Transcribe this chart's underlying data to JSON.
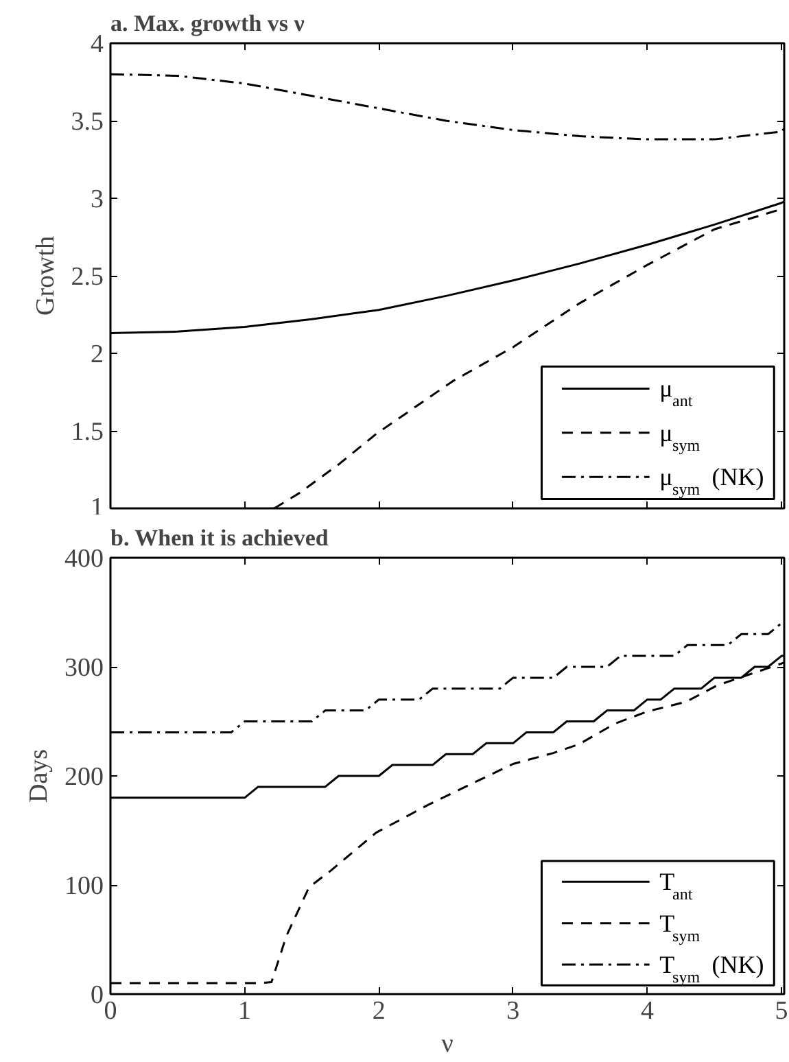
{
  "chart_data": [
    {
      "type": "line",
      "title": "a. Max. growth vs ν",
      "ylabel": "Growth",
      "xlim": [
        0,
        5.02
      ],
      "ylim": [
        1,
        4
      ],
      "xticks": [
        0,
        1,
        2,
        3,
        4,
        5
      ],
      "yticks": [
        1,
        1.5,
        2,
        2.5,
        3,
        3.5,
        4
      ],
      "tick_labels": "y",
      "grid": false,
      "legend": "bottom right",
      "marker": "none",
      "series": [
        {
          "name": "μ$_{ant}$",
          "color": "#000000",
          "line_style": "solid",
          "x": [
            0,
            0.5,
            1,
            1.5,
            2,
            2.5,
            3,
            3.5,
            4,
            4.5,
            5,
            5.02
          ],
          "values": [
            2.13,
            2.14,
            2.17,
            2.22,
            2.28,
            2.37,
            2.47,
            2.58,
            2.7,
            2.83,
            2.97,
            2.98
          ]
        },
        {
          "name": "μ$_{sym}$",
          "color": "#000000",
          "line_style": "dashed",
          "x": [
            1.22,
            1.41,
            1.71,
            1.98,
            2.55,
            3.0,
            3.49,
            4.0,
            4.5,
            5.0,
            5.02
          ],
          "values": [
            1.0,
            1.1,
            1.29,
            1.48,
            1.82,
            2.04,
            2.32,
            2.57,
            2.8,
            2.93,
            2.94
          ]
        },
        {
          "name": "μ$_{sym}$ (NK)",
          "color": "#000000",
          "line_style": "dashdot",
          "x": [
            0,
            0.5,
            1,
            1.5,
            2,
            2.5,
            3,
            3.5,
            4,
            4.5,
            5,
            5.02
          ],
          "values": [
            3.8,
            3.79,
            3.74,
            3.66,
            3.58,
            3.5,
            3.44,
            3.4,
            3.38,
            3.38,
            3.43,
            3.45
          ]
        }
      ]
    },
    {
      "type": "line",
      "title": "b. When it is achieved",
      "xlabel": "ν",
      "ylabel": "Days",
      "xlim": [
        0,
        5.02
      ],
      "ylim": [
        0,
        400
      ],
      "xticks": [
        0,
        1,
        2,
        3,
        4,
        5
      ],
      "yticks": [
        0,
        100,
        200,
        300,
        400
      ],
      "grid": false,
      "legend": "bottom right",
      "marker": "none",
      "series": [
        {
          "name": "T$_{ant}$",
          "color": "#000000",
          "line_style": "solid",
          "x": [
            0,
            1.0,
            1.1,
            1.6,
            1.7,
            2.0,
            2.1,
            2.4,
            2.5,
            2.7,
            2.8,
            3.0,
            3.1,
            3.3,
            3.4,
            3.6,
            3.7,
            3.9,
            4.0,
            4.1,
            4.2,
            4.4,
            4.5,
            4.7,
            4.8,
            4.9,
            5.0,
            5.02
          ],
          "values": [
            180,
            180,
            190,
            190,
            200,
            200,
            210,
            210,
            220,
            220,
            230,
            230,
            240,
            240,
            250,
            250,
            260,
            260,
            270,
            270,
            280,
            280,
            290,
            290,
            300,
            300,
            310,
            310
          ]
        },
        {
          "name": "T$_{sym}$",
          "color": "#000000",
          "line_style": "dashed",
          "x": [
            0,
            1.1,
            1.2,
            1.31,
            1.48,
            1.64,
            1.98,
            2.36,
            2.66,
            3.0,
            3.3,
            3.49,
            3.76,
            4.0,
            4.29,
            4.52,
            5.0,
            5.02
          ],
          "values": [
            10,
            10,
            11,
            53,
            98,
            113,
            148,
            173,
            191,
            211,
            221,
            229,
            248,
            259,
            268,
            283,
            303,
            304
          ]
        },
        {
          "name": "T$_{sym}$ (NK)",
          "color": "#000000",
          "line_style": "dashdot",
          "x": [
            0,
            0.9,
            1.0,
            1.5,
            1.6,
            1.9,
            2.0,
            2.3,
            2.4,
            2.9,
            3.0,
            3.3,
            3.4,
            3.7,
            3.8,
            4.2,
            4.3,
            4.6,
            4.7,
            4.9,
            5.0,
            5.02
          ],
          "values": [
            240,
            240,
            250,
            250,
            260,
            260,
            270,
            270,
            280,
            280,
            290,
            290,
            300,
            300,
            310,
            310,
            320,
            320,
            330,
            330,
            340,
            340
          ]
        }
      ]
    }
  ]
}
